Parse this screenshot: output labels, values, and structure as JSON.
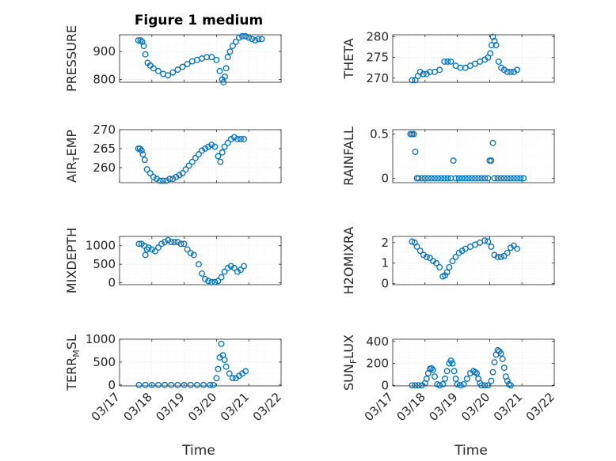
{
  "figure_title": "Figure 1 medium",
  "chart_data": [
    {
      "id": "pressure",
      "type": "scatter",
      "ylabel": "PRESSURE",
      "ylim": [
        790,
        960
      ],
      "yticks": [
        800,
        900
      ],
      "xlim": [
        0,
        5
      ],
      "x": [
        0.58,
        0.65,
        0.7,
        0.75,
        0.8,
        0.87,
        0.95,
        1.05,
        1.2,
        1.35,
        1.5,
        1.65,
        1.8,
        1.95,
        2.1,
        2.25,
        2.4,
        2.55,
        2.7,
        2.85,
        3.0,
        3.1,
        3.18,
        3.22,
        3.26,
        3.3,
        3.35,
        3.42,
        3.5,
        3.6,
        3.7,
        3.8,
        3.9,
        4.0,
        4.1,
        4.2,
        4.3,
        4.4
      ],
      "y": [
        940,
        940,
        935,
        920,
        890,
        860,
        850,
        840,
        830,
        820,
        815,
        825,
        835,
        845,
        855,
        865,
        870,
        875,
        880,
        880,
        870,
        830,
        800,
        790,
        810,
        840,
        880,
        900,
        920,
        935,
        950,
        955,
        955,
        950,
        945,
        940,
        945,
        945
      ]
    },
    {
      "id": "theta",
      "type": "scatter",
      "ylabel": "THETA",
      "ylim": [
        269,
        280.5
      ],
      "yticks": [
        270,
        275,
        280
      ],
      "xlim": [
        0,
        5
      ],
      "x": [
        0.6,
        0.7,
        0.78,
        0.85,
        0.95,
        1.05,
        1.15,
        1.3,
        1.45,
        1.6,
        1.7,
        1.8,
        1.95,
        2.1,
        2.25,
        2.4,
        2.55,
        2.7,
        2.85,
        2.95,
        3.02,
        3.06,
        3.1,
        3.15,
        3.2,
        3.28,
        3.36,
        3.45,
        3.55,
        3.65,
        3.75,
        3.85
      ],
      "y": [
        269.5,
        269.5,
        270.5,
        271.5,
        271,
        271,
        271.5,
        271.5,
        272,
        274,
        274,
        274,
        273,
        272.5,
        272.5,
        273,
        273.5,
        274,
        274.5,
        275,
        276,
        278,
        280,
        279,
        278,
        274,
        272.5,
        272,
        271.5,
        271.5,
        271.5,
        272
      ]
    },
    {
      "id": "airtemp",
      "type": "scatter",
      "ylabel_main": "AIR",
      "ylabel_sub": "T",
      "ylabel_rest": "EMP",
      "ylim": [
        256,
        270
      ],
      "yticks": [
        260,
        265,
        270
      ],
      "xlim": [
        0,
        5
      ],
      "x": [
        0.58,
        0.63,
        0.68,
        0.72,
        0.78,
        0.85,
        0.95,
        1.05,
        1.15,
        1.25,
        1.35,
        1.45,
        1.55,
        1.65,
        1.75,
        1.85,
        1.95,
        2.05,
        2.15,
        2.25,
        2.35,
        2.45,
        2.55,
        2.65,
        2.75,
        2.85,
        2.95,
        3.05,
        3.12,
        3.18,
        3.25,
        3.35,
        3.45,
        3.55,
        3.65,
        3.75,
        3.85
      ],
      "y": [
        265,
        265,
        264.5,
        263.5,
        262,
        259.5,
        258.5,
        257.5,
        257,
        256.5,
        256.5,
        256.5,
        257,
        257,
        257.5,
        258,
        258.5,
        259.5,
        260.5,
        261.5,
        262.5,
        263.5,
        264.5,
        265,
        265.5,
        266,
        265.5,
        263,
        261.5,
        264,
        265.5,
        266.5,
        267.5,
        268,
        267.5,
        267.5,
        267.5
      ]
    },
    {
      "id": "rainfall",
      "type": "scatter",
      "ylabel": "RAINFALL",
      "ylim": [
        -0.05,
        0.55
      ],
      "yticks": [
        0,
        0.5
      ],
      "xlim": [
        0,
        5
      ],
      "x": [
        0.55,
        0.6,
        0.65,
        0.7,
        0.75,
        0.8,
        0.9,
        1.0,
        1.1,
        1.2,
        1.3,
        1.4,
        1.5,
        1.6,
        1.7,
        1.8,
        1.88,
        1.95,
        2.05,
        2.15,
        2.25,
        2.35,
        2.45,
        2.55,
        2.65,
        2.75,
        2.85,
        2.95,
        3.0,
        3.05,
        3.1,
        3.15,
        3.25,
        3.35,
        3.45,
        3.55,
        3.65,
        3.75,
        3.85,
        3.95,
        4.05
      ],
      "y": [
        0.5,
        0.5,
        0.5,
        0.3,
        0,
        0,
        0,
        0,
        0,
        0,
        0,
        0,
        0,
        0,
        0,
        0,
        0.2,
        0,
        0,
        0,
        0,
        0,
        0,
        0,
        0,
        0,
        0,
        0,
        0.2,
        0.2,
        0.4,
        0,
        0,
        0,
        0,
        0,
        0,
        0,
        0,
        0,
        0
      ]
    },
    {
      "id": "mixdepth",
      "type": "scatter",
      "ylabel": "MIXDEPTH",
      "ylim": [
        -50,
        1250
      ],
      "yticks": [
        0,
        500,
        1000
      ],
      "xlim": [
        0,
        5
      ],
      "x": [
        0.6,
        0.68,
        0.76,
        0.8,
        0.85,
        0.9,
        1.0,
        1.1,
        1.2,
        1.3,
        1.4,
        1.5,
        1.6,
        1.7,
        1.8,
        1.9,
        2.0,
        2.1,
        2.2,
        2.3,
        2.45,
        2.55,
        2.65,
        2.75,
        2.85,
        2.95,
        3.05,
        3.15,
        3.25,
        3.35,
        3.45,
        3.55,
        3.65,
        3.75,
        3.85
      ],
      "y": [
        1050,
        1050,
        1000,
        750,
        900,
        950,
        900,
        850,
        950,
        1050,
        1100,
        1150,
        1100,
        1100,
        1100,
        1050,
        1050,
        900,
        800,
        750,
        500,
        250,
        100,
        50,
        20,
        20,
        50,
        150,
        300,
        400,
        450,
        400,
        300,
        350,
        450
      ]
    },
    {
      "id": "h2omix",
      "type": "scatter",
      "ylabel": "H2OMIXRA",
      "ylim": [
        -0.05,
        2.3
      ],
      "yticks": [
        0,
        1,
        2
      ],
      "xlim": [
        0,
        5
      ],
      "x": [
        0.6,
        0.68,
        0.75,
        0.85,
        0.95,
        1.05,
        1.15,
        1.25,
        1.35,
        1.45,
        1.55,
        1.62,
        1.68,
        1.75,
        1.85,
        1.95,
        2.05,
        2.15,
        2.25,
        2.4,
        2.55,
        2.7,
        2.85,
        2.95,
        3.05,
        3.15,
        3.25,
        3.35,
        3.45,
        3.55,
        3.65,
        3.75,
        3.85
      ],
      "y": [
        2.05,
        2.0,
        1.8,
        1.6,
        1.4,
        1.3,
        1.25,
        1.1,
        1.0,
        0.8,
        0.35,
        0.4,
        0.55,
        0.8,
        1.1,
        1.3,
        1.5,
        1.6,
        1.7,
        1.8,
        1.9,
        2.0,
        2.1,
        2.05,
        1.8,
        1.4,
        1.3,
        1.3,
        1.35,
        1.5,
        1.75,
        1.85,
        1.7
      ]
    },
    {
      "id": "terrmsl",
      "type": "scatter",
      "ylabel_main": "TERR",
      "ylabel_sub": "M",
      "ylabel_rest": "SL",
      "ylim": [
        -20,
        1000
      ],
      "yticks": [
        0,
        500,
        1000
      ],
      "xlim": [
        0,
        5
      ],
      "x": [
        0.6,
        0.8,
        1.0,
        1.2,
        1.4,
        1.6,
        1.8,
        2.0,
        2.2,
        2.4,
        2.6,
        2.8,
        2.9,
        3.0,
        3.05,
        3.1,
        3.15,
        3.2,
        3.25,
        3.3,
        3.4,
        3.5,
        3.6,
        3.7,
        3.8,
        3.9
      ],
      "y": [
        0,
        0,
        0,
        0,
        0,
        0,
        0,
        0,
        0,
        0,
        0,
        0,
        0,
        150,
        350,
        600,
        900,
        650,
        550,
        400,
        250,
        150,
        150,
        200,
        250,
        300
      ]
    },
    {
      "id": "sunflux",
      "type": "scatter",
      "ylabel_main": "SUN",
      "ylabel_sub": "F",
      "ylabel_rest": "LUX",
      "ylim": [
        -5,
        420
      ],
      "yticks": [
        0,
        200,
        400
      ],
      "xlim": [
        0,
        5
      ],
      "x": [
        0.6,
        0.7,
        0.8,
        0.9,
        1.0,
        1.05,
        1.1,
        1.15,
        1.2,
        1.25,
        1.3,
        1.38,
        1.45,
        1.55,
        1.62,
        1.68,
        1.75,
        1.8,
        1.85,
        1.9,
        1.95,
        2.0,
        2.1,
        2.2,
        2.3,
        2.4,
        2.5,
        2.55,
        2.6,
        2.65,
        2.7,
        2.75,
        2.85,
        2.95,
        3.05,
        3.1,
        3.15,
        3.2,
        3.25,
        3.3,
        3.35,
        3.4,
        3.45,
        3.5,
        3.55,
        3.6,
        3.65
      ],
      "y": [
        0,
        0,
        0,
        0,
        20,
        60,
        110,
        150,
        155,
        140,
        80,
        10,
        0,
        10,
        60,
        130,
        200,
        225,
        200,
        130,
        60,
        10,
        0,
        10,
        60,
        110,
        130,
        120,
        110,
        60,
        20,
        0,
        0,
        0,
        40,
        120,
        210,
        280,
        320,
        310,
        290,
        240,
        160,
        80,
        40,
        10,
        0
      ]
    }
  ],
  "xtick_labels": [
    "03/17",
    "03/18",
    "03/19",
    "03/20",
    "03/21",
    "03/22"
  ],
  "xlabel_left": "Time",
  "xlabel_right": "Time"
}
